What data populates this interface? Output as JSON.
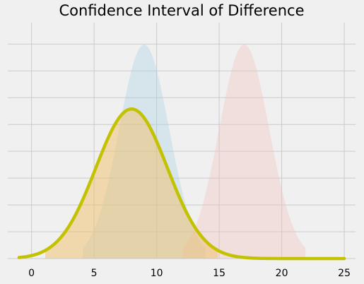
{
  "chart_data": {
    "type": "area",
    "title": "Confidence Interval of Difference",
    "xlabel": "",
    "ylabel": "",
    "xlim": [
      -1.9,
      25.9
    ],
    "ylim": [
      0,
      0.22
    ],
    "grid": true,
    "x_ticks": [
      0,
      5,
      10,
      15,
      20,
      25
    ],
    "y_ticks": [
      0.0,
      0.025,
      0.05,
      0.075,
      0.1,
      0.125,
      0.15,
      0.175,
      0.2
    ],
    "y_tick_labels_visible": false,
    "colors": {
      "blue_fill": "#a6d1e6",
      "red_fill": "#f2c0b8",
      "orange_fill": "#f2c068",
      "line": "#c2c200"
    },
    "series": [
      {
        "kind": "area",
        "fill": "blue_fill",
        "mean": 9,
        "sd": 2,
        "x_range": [
          4.1,
          13.9
        ],
        "opacity": 0.35
      },
      {
        "kind": "area",
        "fill": "red_fill",
        "mean": 17,
        "sd": 2,
        "x_range": [
          12.1,
          21.9
        ],
        "opacity": 0.35
      },
      {
        "kind": "area",
        "fill": "orange_fill",
        "mean": 8,
        "sd": 2.86,
        "x_range": [
          1.1,
          14.9
        ],
        "opacity": 0.5
      },
      {
        "kind": "line",
        "stroke": "line",
        "mean": 8,
        "sd": 2.86,
        "x_range": [
          -1,
          25
        ],
        "width": 4.5
      }
    ]
  }
}
